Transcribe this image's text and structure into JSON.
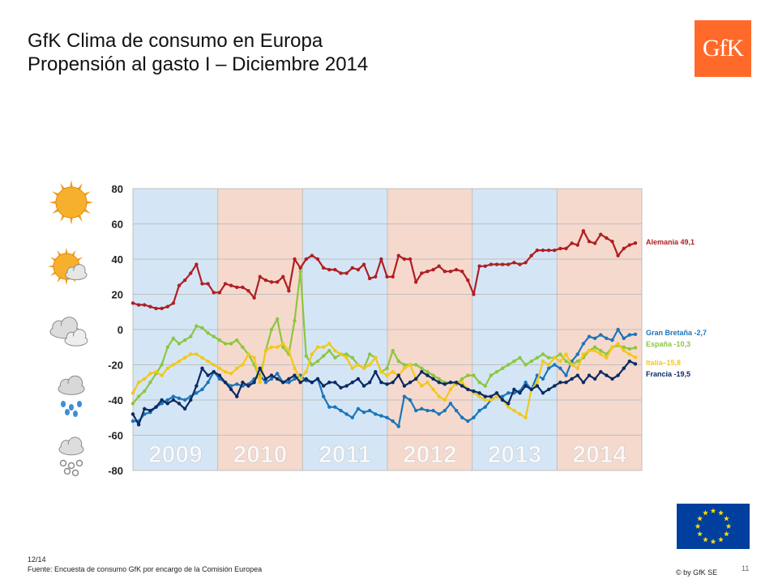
{
  "header": {
    "title_line1": "GfK Clima de consumo en Europa",
    "title_line2": "Propensión al gasto I – Diciembre 2014",
    "logo_text": "GfK"
  },
  "footer": {
    "date": "12/14",
    "source": "Fuente: Encuesta de consumo GfK por encargo de la Comisión Europea",
    "page": "11",
    "copyright": "© by GfK SE"
  },
  "weather_icons": [
    "sun-icon",
    "sun-cloud-icon",
    "cloud-icon",
    "rain-icon",
    "snow-icon"
  ],
  "chart_data": {
    "type": "line",
    "ylim": [
      -80,
      80
    ],
    "yticks": [
      80,
      60,
      40,
      20,
      0,
      -20,
      -40,
      -60,
      -80
    ],
    "years": [
      {
        "label": "2009",
        "color": "#d4e6f6"
      },
      {
        "label": "2010",
        "color": "#f6d9cd"
      },
      {
        "label": "2011",
        "color": "#d4e6f6"
      },
      {
        "label": "2012",
        "color": "#f6d9cd"
      },
      {
        "label": "2013",
        "color": "#d4e6f6"
      },
      {
        "label": "2014",
        "color": "#f6d9cd"
      }
    ],
    "series": [
      {
        "name": "Alemania",
        "label": "Alemania  49,1",
        "color": "#b01e23",
        "values": [
          15,
          14,
          14,
          13,
          12,
          12,
          13,
          15,
          25,
          28,
          32,
          37,
          26,
          26,
          21,
          21,
          26,
          25,
          24,
          24,
          22,
          18,
          30,
          28,
          27,
          27,
          30,
          22,
          40,
          35,
          40,
          42,
          40,
          35,
          34,
          34,
          32,
          32,
          35,
          34,
          37,
          29,
          30,
          40,
          30,
          30,
          42,
          40,
          40,
          27,
          32,
          33,
          34,
          36,
          33,
          33,
          34,
          33,
          28,
          20,
          36,
          36,
          37,
          37,
          37,
          37,
          38,
          37,
          38,
          42,
          45,
          45,
          45,
          45,
          46,
          46,
          49,
          48,
          56,
          50,
          49,
          54,
          52,
          50,
          42,
          46,
          48,
          49.1
        ]
      },
      {
        "name": "Gran Bretaña",
        "label": "Gran Bretaña -2,7",
        "color": "#1b75bb",
        "values": [
          -52,
          -52,
          -48,
          -47,
          -44,
          -42,
          -40,
          -38,
          -39,
          -40,
          -38,
          -36,
          -34,
          -30,
          -24,
          -28,
          -30,
          -32,
          -31,
          -32,
          -31,
          -28,
          -26,
          -30,
          -28,
          -25,
          -30,
          -30,
          -28,
          -26,
          -29,
          -30,
          -28,
          -38,
          -44,
          -44,
          -46,
          -48,
          -50,
          -45,
          -47,
          -46,
          -48,
          -49,
          -50,
          -52,
          -55,
          -38,
          -40,
          -46,
          -45,
          -46,
          -46,
          -48,
          -46,
          -42,
          -46,
          -50,
          -52,
          -50,
          -46,
          -44,
          -40,
          -38,
          -38,
          -36,
          -36,
          -35,
          -30,
          -34,
          -26,
          -28,
          -22,
          -20,
          -22,
          -26,
          -18,
          -14,
          -8,
          -4,
          -5,
          -3,
          -5,
          -6,
          0,
          -5,
          -3,
          -2.7
        ]
      },
      {
        "name": "España",
        "label": "España -10,3",
        "color": "#8cc63f",
        "values": [
          -42,
          -38,
          -35,
          -30,
          -25,
          -20,
          -10,
          -5,
          -8,
          -6,
          -4,
          2,
          1,
          -2,
          -4,
          -6,
          -8,
          -8,
          -6,
          -10,
          -14,
          -20,
          -28,
          -12,
          0,
          6,
          -10,
          -14,
          5,
          33,
          -15,
          -20,
          -18,
          -15,
          -12,
          -16,
          -14,
          -14,
          -16,
          -20,
          -22,
          -14,
          -16,
          -24,
          -22,
          -12,
          -18,
          -20,
          -20,
          -20,
          -22,
          -24,
          -26,
          -28,
          -30,
          -30,
          -31,
          -28,
          -26,
          -26,
          -30,
          -32,
          -26,
          -24,
          -22,
          -20,
          -18,
          -16,
          -20,
          -18,
          -16,
          -14,
          -16,
          -16,
          -14,
          -18,
          -20,
          -18,
          -16,
          -12,
          -10,
          -12,
          -14,
          -10,
          -9,
          -10,
          -11,
          -10.3
        ]
      },
      {
        "name": "Italia",
        "label": "Italia–15,8",
        "color": "#f2c818",
        "values": [
          -36,
          -30,
          -28,
          -25,
          -24,
          -26,
          -22,
          -20,
          -18,
          -16,
          -14,
          -14,
          -16,
          -18,
          -20,
          -22,
          -24,
          -25,
          -22,
          -20,
          -14,
          -16,
          -30,
          -12,
          -10,
          -10,
          -8,
          -12,
          -22,
          -28,
          -24,
          -14,
          -10,
          -10,
          -8,
          -12,
          -14,
          -16,
          -22,
          -20,
          -22,
          -20,
          -16,
          -24,
          -26,
          -24,
          -26,
          -22,
          -20,
          -28,
          -32,
          -30,
          -34,
          -38,
          -40,
          -34,
          -30,
          -30,
          -34,
          -36,
          -38,
          -40,
          -40,
          -38,
          -40,
          -44,
          -46,
          -48,
          -50,
          -34,
          -30,
          -18,
          -20,
          -16,
          -18,
          -14,
          -20,
          -22,
          -14,
          -12,
          -12,
          -14,
          -16,
          -10,
          -8,
          -12,
          -14,
          -15.8
        ]
      },
      {
        "name": "Francia",
        "label": "Francia -19,5",
        "color": "#0c2a63",
        "values": [
          -48,
          -54,
          -45,
          -46,
          -44,
          -40,
          -42,
          -40,
          -42,
          -45,
          -40,
          -32,
          -22,
          -26,
          -24,
          -26,
          -30,
          -34,
          -38,
          -30,
          -32,
          -30,
          -22,
          -28,
          -26,
          -28,
          -30,
          -28,
          -26,
          -30,
          -28,
          -30,
          -28,
          -32,
          -30,
          -30,
          -33,
          -32,
          -30,
          -28,
          -32,
          -30,
          -24,
          -30,
          -31,
          -30,
          -26,
          -32,
          -30,
          -28,
          -24,
          -26,
          -28,
          -30,
          -31,
          -30,
          -30,
          -32,
          -34,
          -35,
          -36,
          -38,
          -38,
          -36,
          -40,
          -42,
          -34,
          -36,
          -32,
          -34,
          -32,
          -36,
          -34,
          -32,
          -30,
          -30,
          -28,
          -26,
          -30,
          -26,
          -28,
          -24,
          -26,
          -28,
          -26,
          -22,
          -18,
          -19.5
        ]
      }
    ]
  }
}
